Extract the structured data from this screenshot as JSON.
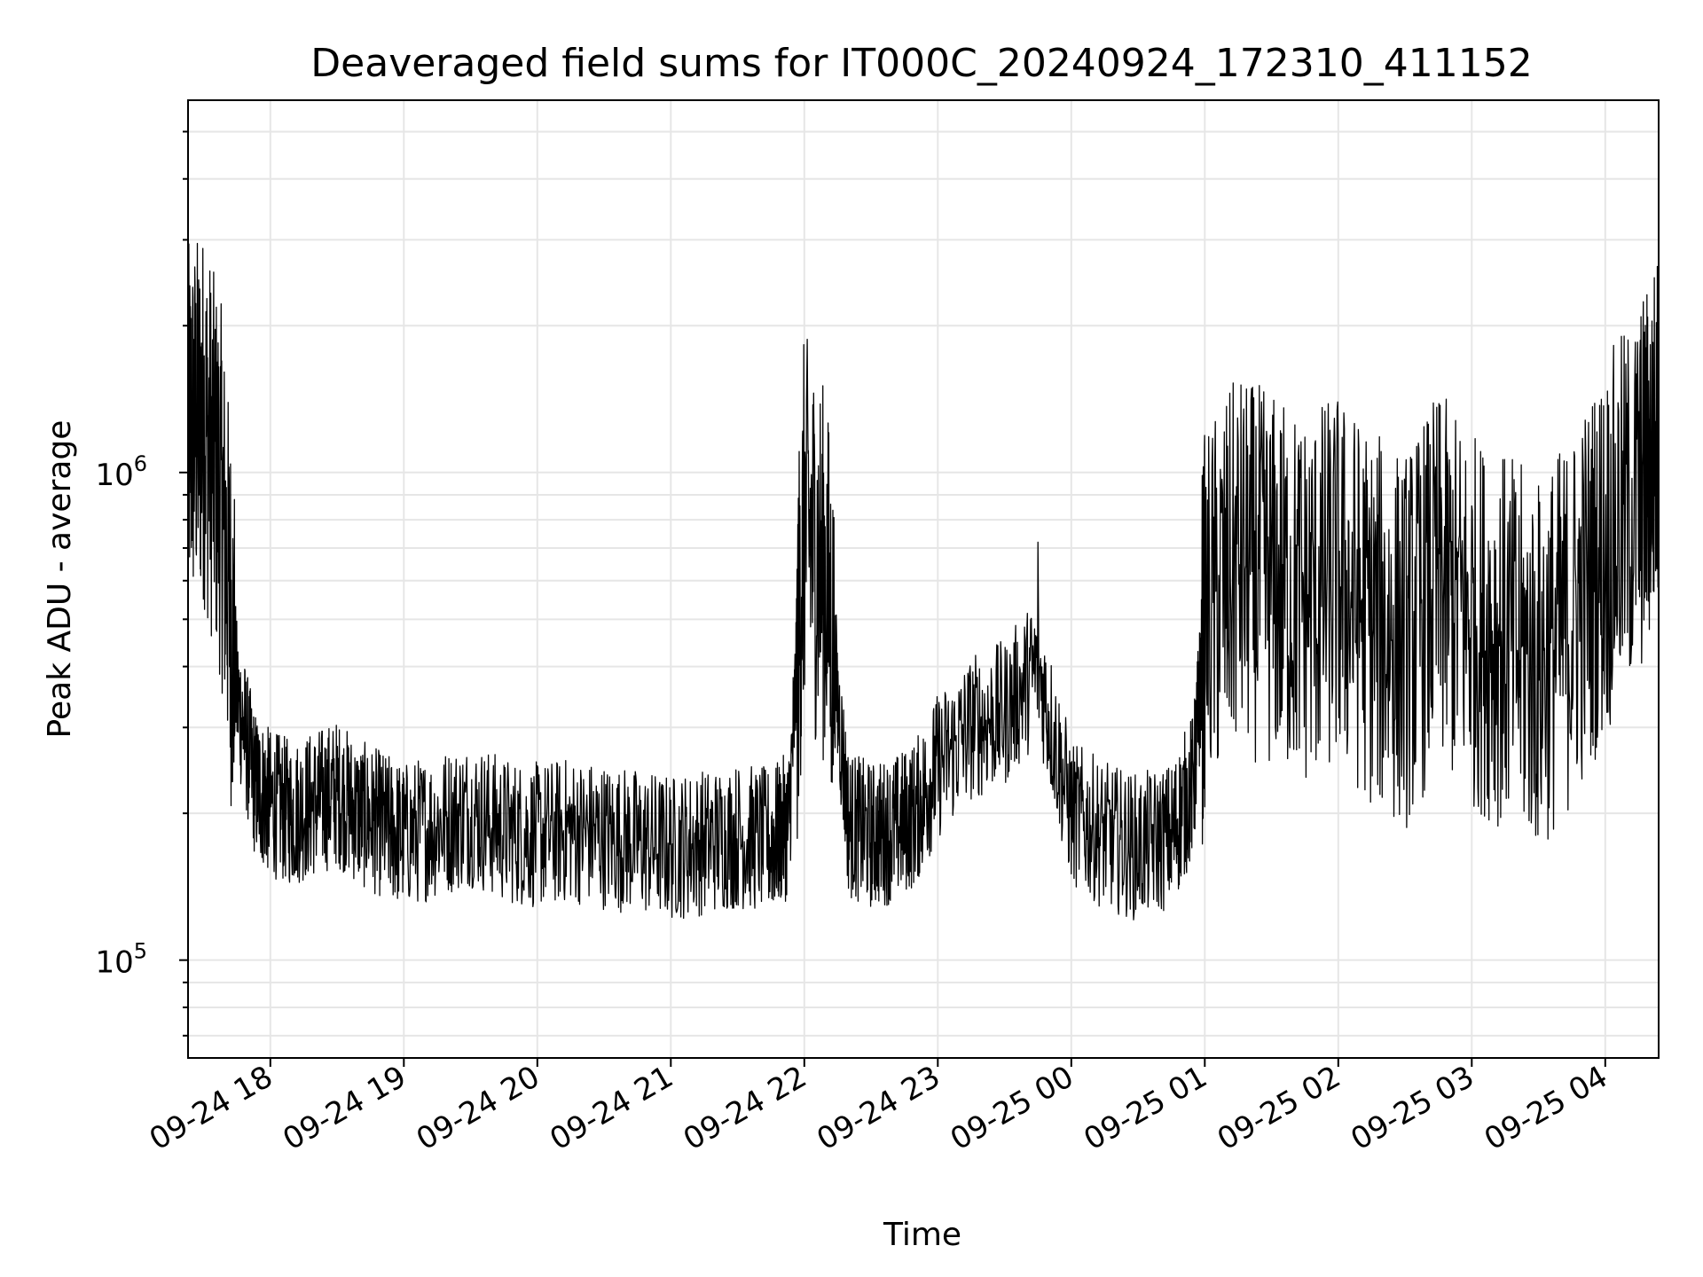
{
  "chart_data": {
    "type": "line",
    "title": "Deaveraged field sums for IT000C_20240924_172310_411152",
    "xlabel": "Time",
    "ylabel": "Peak ADU - average",
    "y_scale": "log",
    "ylim": [
      63000,
      5800000
    ],
    "xlim": [
      "2024-09-24 17:23",
      "2024-09-25 04:24"
    ],
    "grid": true,
    "line_color": "#000000",
    "grid_color": "#e6e6e6",
    "x_tick_labels": [
      "09-24 18",
      "09-24 19",
      "09-24 20",
      "09-24 21",
      "09-24 22",
      "09-24 23",
      "09-25 00",
      "09-25 01",
      "09-25 02",
      "09-25 03",
      "09-25 04"
    ],
    "y_tick_labels": [
      {
        "base": "10",
        "exp": "5"
      },
      {
        "base": "10",
        "exp": "6"
      }
    ],
    "series": [
      {
        "x": [
          "2024-09-24 17:23",
          "2024-09-24 17:30",
          "2024-09-24 17:38",
          "2024-09-24 17:45",
          "2024-09-24 17:53",
          "2024-09-24 18:00",
          "2024-09-24 18:10",
          "2024-09-24 18:20",
          "2024-09-24 18:30",
          "2024-09-24 18:40",
          "2024-09-24 18:50",
          "2024-09-24 19:00",
          "2024-09-24 19:15",
          "2024-09-24 19:30",
          "2024-09-24 19:45",
          "2024-09-24 20:00",
          "2024-09-24 20:15",
          "2024-09-24 20:30",
          "2024-09-24 20:45",
          "2024-09-24 21:00",
          "2024-09-24 21:15",
          "2024-09-24 21:30",
          "2024-09-24 21:45",
          "2024-09-24 21:53",
          "2024-09-24 22:00",
          "2024-09-24 22:10",
          "2024-09-24 22:20",
          "2024-09-24 22:30",
          "2024-09-24 22:40",
          "2024-09-24 22:50",
          "2024-09-24 23:00",
          "2024-09-24 23:15",
          "2024-09-24 23:30",
          "2024-09-24 23:45",
          "2024-09-25 00:00",
          "2024-09-25 00:15",
          "2024-09-25 00:30",
          "2024-09-25 00:45",
          "2024-09-25 00:55",
          "2024-09-25 01:00",
          "2024-09-25 01:15",
          "2024-09-25 01:30",
          "2024-09-25 01:45",
          "2024-09-25 02:00",
          "2024-09-25 02:15",
          "2024-09-25 02:30",
          "2024-09-25 02:45",
          "2024-09-25 03:00",
          "2024-09-25 03:15",
          "2024-09-25 03:30",
          "2024-09-25 03:45",
          "2024-09-25 04:00",
          "2024-09-25 04:15",
          "2024-09-25 04:24"
        ],
        "y": [
          1200000,
          1300000,
          900000,
          350000,
          230000,
          210000,
          200000,
          210000,
          220000,
          200000,
          190000,
          180000,
          190000,
          200000,
          185000,
          180000,
          185000,
          180000,
          175000,
          170000,
          175000,
          180000,
          175000,
          190000,
          800000,
          600000,
          190000,
          180000,
          185000,
          200000,
          250000,
          300000,
          320000,
          400000,
          200000,
          180000,
          170000,
          180000,
          230000,
          500000,
          650000,
          600000,
          550000,
          600000,
          500000,
          450000,
          600000,
          500000,
          450000,
          400000,
          500000,
          700000,
          900000,
          1200000
        ]
      }
    ]
  }
}
